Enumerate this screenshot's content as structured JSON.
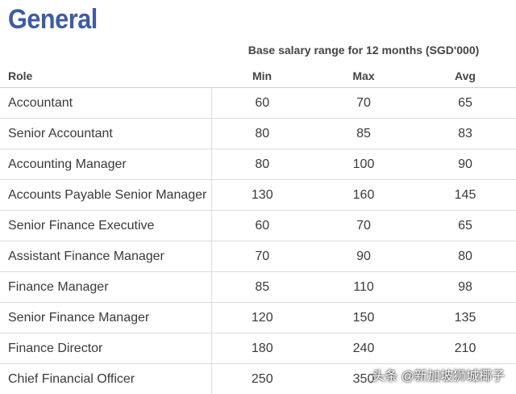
{
  "title": "General",
  "range_header": "Base salary range for 12 months (SGD'000)",
  "columns": {
    "role": "Role",
    "min": "Min",
    "max": "Max",
    "avg": "Avg"
  },
  "rows": [
    {
      "role": "Accountant",
      "min": "60",
      "max": "70",
      "avg": "65"
    },
    {
      "role": "Senior Accountant",
      "min": "80",
      "max": "85",
      "avg": "83"
    },
    {
      "role": "Accounting Manager",
      "min": "80",
      "max": "100",
      "avg": "90"
    },
    {
      "role": "Accounts Payable Senior Manager",
      "min": "130",
      "max": "160",
      "avg": "145"
    },
    {
      "role": "Senior Finance Executive",
      "min": "60",
      "max": "70",
      "avg": "65"
    },
    {
      "role": "Assistant Finance Manager",
      "min": "70",
      "max": "90",
      "avg": "80"
    },
    {
      "role": "Finance Manager",
      "min": "85",
      "max": "110",
      "avg": "98"
    },
    {
      "role": "Senior Finance Manager",
      "min": "120",
      "max": "150",
      "avg": "135"
    },
    {
      "role": "Finance Director",
      "min": "180",
      "max": "240",
      "avg": "210"
    },
    {
      "role": "Chief Financial Officer",
      "min": "250",
      "max": "350",
      "avg": ""
    }
  ],
  "watermark": "头条 @新加坡狮城椰子"
}
